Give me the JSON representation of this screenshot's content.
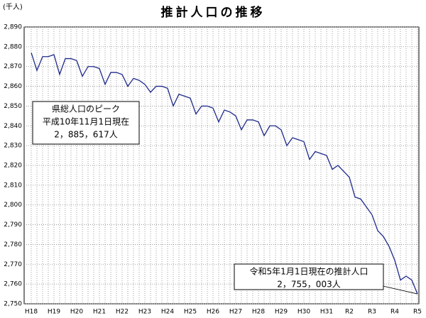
{
  "chart_data": {
    "type": "line",
    "title": "推計人口の推移",
    "y_unit": "(千人)",
    "categories": [
      "H18",
      null,
      null,
      null,
      "H19",
      null,
      null,
      null,
      "H20",
      null,
      null,
      null,
      "H21",
      null,
      null,
      null,
      "H22",
      null,
      null,
      null,
      "H23",
      null,
      null,
      null,
      "H24",
      null,
      null,
      null,
      "H25",
      null,
      null,
      null,
      "H26",
      null,
      null,
      null,
      "H27",
      null,
      null,
      null,
      "H28",
      null,
      null,
      null,
      "H29",
      null,
      null,
      null,
      "H30",
      null,
      null,
      null,
      "H31",
      null,
      null,
      null,
      "R2",
      null,
      null,
      null,
      "R3",
      null,
      null,
      null,
      "R4",
      null,
      null,
      null,
      "R5"
    ],
    "series": [
      {
        "name": "推計人口",
        "color": "#1f2a8a",
        "values": [
          2877,
          2868,
          2875,
          2875,
          2876,
          2866,
          2874,
          2874,
          2873,
          2865,
          2870,
          2870,
          2869,
          2861,
          2867,
          2867,
          2866,
          2860,
          2864,
          2863,
          2861,
          2857,
          2860,
          2860,
          2859,
          2850,
          2856,
          2855,
          2854,
          2846,
          2850,
          2850,
          2849,
          2842,
          2848,
          2847,
          2845,
          2838,
          2843,
          2843,
          2842,
          2835,
          2840,
          2840,
          2838,
          2830,
          2834,
          2833,
          2832,
          2823,
          2827,
          2826,
          2825,
          2818,
          2820,
          2817,
          2814,
          2804,
          2803,
          2799,
          2795,
          2787,
          2784,
          2779,
          2772,
          2762,
          2764,
          2762,
          2755
        ]
      }
    ],
    "ylim": [
      2750,
      2890
    ],
    "yticks": [
      {
        "value": 2750,
        "label": "2,750"
      },
      {
        "value": 2760,
        "label": "2,760"
      },
      {
        "value": 2770,
        "label": "2,770"
      },
      {
        "value": 2780,
        "label": "2,780"
      },
      {
        "value": 2790,
        "label": "2,790"
      },
      {
        "value": 2800,
        "label": "2,800"
      },
      {
        "value": 2810,
        "label": "2,810"
      },
      {
        "value": 2820,
        "label": "2,820"
      },
      {
        "value": 2830,
        "label": "2,830"
      },
      {
        "value": 2840,
        "label": "2,840"
      },
      {
        "value": 2850,
        "label": "2,850"
      },
      {
        "value": 2860,
        "label": "2,860"
      },
      {
        "value": 2870,
        "label": "2,870"
      },
      {
        "value": 2880,
        "label": "2,880"
      },
      {
        "value": 2890,
        "label": "2,890"
      }
    ],
    "grid": true,
    "annotations": [
      {
        "lines": [
          "県総人口のピーク",
          "平成10年11月1日現在",
          "2，885，617人"
        ]
      },
      {
        "lines": [
          "令和5年1月1日現在の推計人口",
          "2，755，003人"
        ]
      }
    ]
  }
}
